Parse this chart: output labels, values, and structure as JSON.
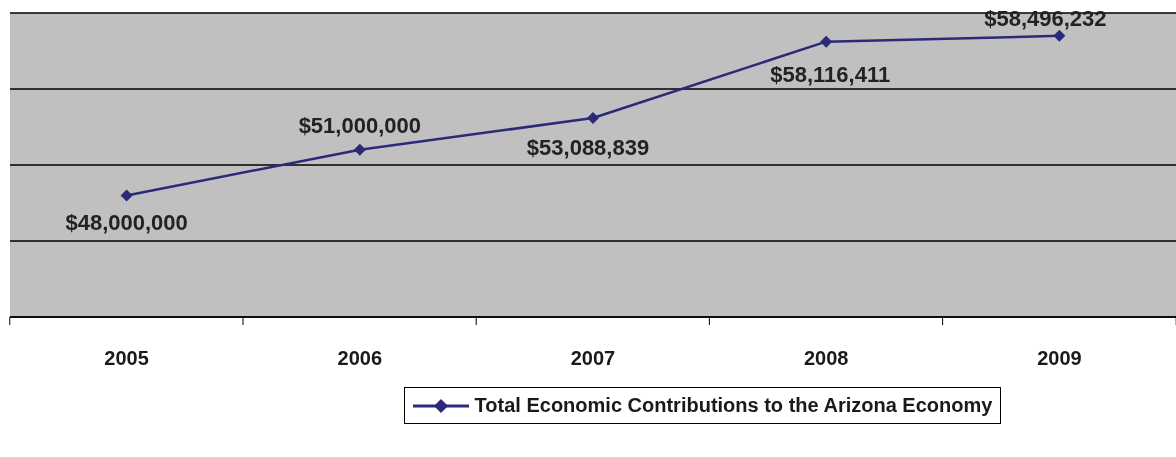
{
  "chart_data": {
    "type": "line",
    "categories": [
      "2005",
      "2006",
      "2007",
      "2008",
      "2009"
    ],
    "series": [
      {
        "name": "Total Economic Contributions to the Arizona Economy",
        "color": "#2b2a7a",
        "values": [
          48000000,
          51000000,
          53088839,
          58116411,
          58496232
        ],
        "value_labels": [
          "$48,000,000",
          "$51,000,000",
          "$53,088,839",
          "$58,116,411",
          "$58,496,232"
        ]
      }
    ],
    "ylim": [
      40000000,
      60000000
    ],
    "yticks": [
      {
        "value": 40000000,
        "label": null
      },
      {
        "value": 45000000,
        "label": null
      },
      {
        "value": 50000000,
        "label": null
      },
      {
        "value": 55000000,
        "label": null
      },
      {
        "value": 60000000,
        "label": null
      }
    ],
    "tick_labels": "x",
    "grid": "y",
    "legend": "bottom",
    "marker": "diamond",
    "line_style": "solid"
  }
}
